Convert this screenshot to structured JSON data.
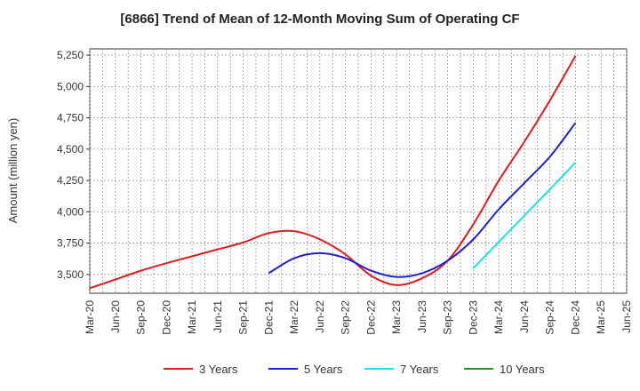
{
  "chart_data": {
    "type": "line",
    "title": "[6866]  Trend of Mean of 12-Month Moving Sum of Operating CF",
    "xlabel": "",
    "ylabel": "Amount (million yen)",
    "ylim": [
      3350,
      5300
    ],
    "y_ticks": [
      "3,500",
      "3,750",
      "4,000",
      "4,250",
      "4,500",
      "4,750",
      "5,000",
      "5,250"
    ],
    "y_tick_values": [
      3500,
      3750,
      4000,
      4250,
      4500,
      4750,
      5000,
      5250
    ],
    "x_ticks": [
      "Mar-20",
      "Jun-20",
      "Sep-20",
      "Dec-20",
      "Mar-21",
      "Jun-21",
      "Sep-21",
      "Dec-21",
      "Mar-22",
      "Jun-22",
      "Sep-22",
      "Dec-22",
      "Mar-23",
      "Jun-23",
      "Sep-23",
      "Dec-23",
      "Mar-24",
      "Jun-24",
      "Sep-24",
      "Dec-24",
      "Mar-25",
      "Jun-25"
    ],
    "grid": true,
    "series": [
      {
        "name": "3 Years",
        "color": "#e31a1c",
        "x_index": [
          0,
          1,
          2,
          3,
          4,
          5,
          6,
          7,
          8,
          9,
          10,
          11,
          12,
          13,
          14,
          15,
          16,
          17,
          18,
          19
        ],
        "values": [
          3390,
          3460,
          3530,
          3590,
          3645,
          3700,
          3755,
          3830,
          3845,
          3780,
          3660,
          3490,
          3415,
          3470,
          3610,
          3900,
          4250,
          4560,
          4890,
          5245
        ]
      },
      {
        "name": "5 Years",
        "color": "#1f1fcf",
        "x_index": [
          7,
          8,
          9,
          10,
          11,
          12,
          13,
          14,
          15,
          16,
          17,
          18,
          19
        ],
        "values": [
          3510,
          3630,
          3670,
          3630,
          3530,
          3480,
          3510,
          3610,
          3780,
          4020,
          4230,
          4440,
          4710
        ]
      },
      {
        "name": "7 Years",
        "color": "#17e3e3",
        "x_index": [
          15,
          16,
          17,
          18,
          19
        ],
        "values": [
          3550,
          3760,
          3970,
          4180,
          4395
        ]
      },
      {
        "name": "10 Years",
        "color": "#2e8b2e",
        "x_index": [],
        "values": []
      }
    ],
    "legend_position": "bottom"
  }
}
